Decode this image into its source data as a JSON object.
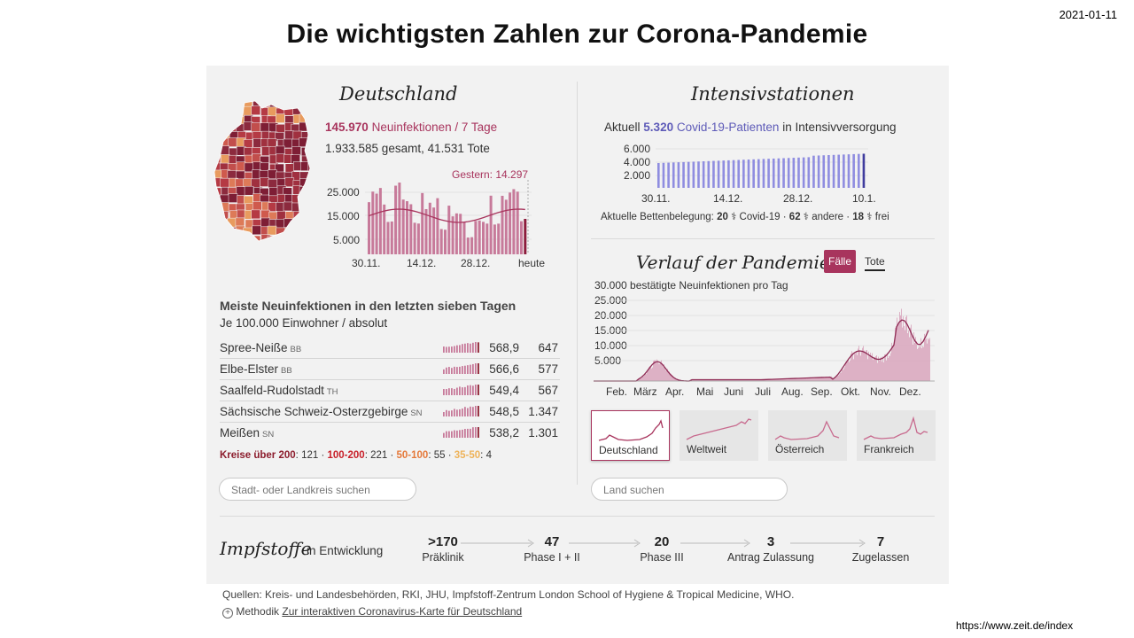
{
  "date": "2021-01-11",
  "url": "https://www.zeit.de/index",
  "title": "Die wichtigsten Zahlen zur Corona-Pandemie",
  "colors": {
    "rose": "#a8345d",
    "purple": "#5e5bb8",
    "dark_red": "#8c1c2c",
    "red": "#c8202a",
    "orange": "#e5793a",
    "amber": "#eeb35a"
  },
  "germany": {
    "heading": "Deutschland",
    "new_cases": "145.970",
    "new_cases_label": "Neuinfektionen / 7 Tage",
    "totals": "1.933.585 gesamt, 41.531 Tote",
    "chart": {
      "gestern_label": "Gestern: 14.297",
      "y_ticks": [
        "25.000",
        "15.000",
        "5.000"
      ],
      "x_ticks": [
        "30.11.",
        "14.12.",
        "28.12.",
        "heute"
      ]
    }
  },
  "icu": {
    "heading": "Intensivstationen",
    "current_prefix": "Aktuell",
    "current_value": "5.320",
    "current_suffix": "Covid-19-Patienten",
    "current_tail": "in Intensivversorgung",
    "y_ticks": [
      "6.000",
      "4.000",
      "2.000"
    ],
    "x_ticks": [
      "30.11.",
      "14.12.",
      "28.12.",
      "10.1."
    ],
    "beds_label": "Aktuelle Bettenbelegung:",
    "beds_covid_n": "20",
    "beds_covid": "Covid-19",
    "beds_other_n": "62",
    "beds_other": "andere",
    "beds_free_n": "18",
    "beds_free": "frei"
  },
  "counties": {
    "heading": "Meiste Neuinfektionen in den letzten sieben Tagen",
    "subheading": "Je 100.000 Einwohner / absolut",
    "rows": [
      {
        "name": "Spree-Neiße",
        "state": "BB",
        "rate": "568,9",
        "absolute": "647"
      },
      {
        "name": "Elbe-Elster",
        "state": "BB",
        "rate": "566,6",
        "absolute": "577"
      },
      {
        "name": "Saalfeld-Rudolstadt",
        "state": "TH",
        "rate": "549,4",
        "absolute": "567"
      },
      {
        "name": "Sächsische Schweiz-Osterzgebirge",
        "state": "SN",
        "rate": "548,5",
        "absolute": "1.347"
      },
      {
        "name": "Meißen",
        "state": "SN",
        "rate": "538,2",
        "absolute": "1.301"
      }
    ],
    "legend": {
      "k1": "Kreise über 200",
      "v1": "121",
      "k2": "100-200",
      "v2": "221",
      "k3": "50-100",
      "v3": "55",
      "k4": "35-50",
      "v4": "4"
    },
    "search_placeholder": "Stadt- oder Landkreis suchen"
  },
  "pandemic": {
    "heading": "Verlauf der Pandemie",
    "tab_cases": "Fälle",
    "tab_deaths": "Tote",
    "y_caption": "30.000 bestätigte Neuinfektionen pro Tag",
    "y_ticks": [
      "25.000",
      "20.000",
      "15.000",
      "10.000",
      "5.000"
    ],
    "x_ticks": [
      "Feb.",
      "März",
      "Apr.",
      "Mai",
      "Juni",
      "Juli",
      "Aug.",
      "Sep.",
      "Okt.",
      "Nov.",
      "Dez."
    ],
    "countries": [
      "Deutschland",
      "Weltweit",
      "Österreich",
      "Frankreich"
    ],
    "search_placeholder": "Land suchen"
  },
  "vaccines": {
    "heading": "Impfstoffe",
    "subheading": "in Entwicklung",
    "stages": [
      {
        "value": ">170",
        "label": "Präklinik"
      },
      {
        "value": "47",
        "label": "Phase I + II"
      },
      {
        "value": "20",
        "label": "Phase III"
      },
      {
        "value": "3",
        "label": "Antrag Zulassung"
      },
      {
        "value": "7",
        "label": "Zugelassen"
      }
    ]
  },
  "footer": {
    "sources": "Quellen: Kreis- und Landesbehörden, RKI, JHU, Impfstoff-Zentrum London School of Hygiene & Tropical Medicine, WHO.",
    "method_label": "Methodik",
    "method_link": "Zur interaktiven Coronavirus-Karte für Deutschland"
  }
}
